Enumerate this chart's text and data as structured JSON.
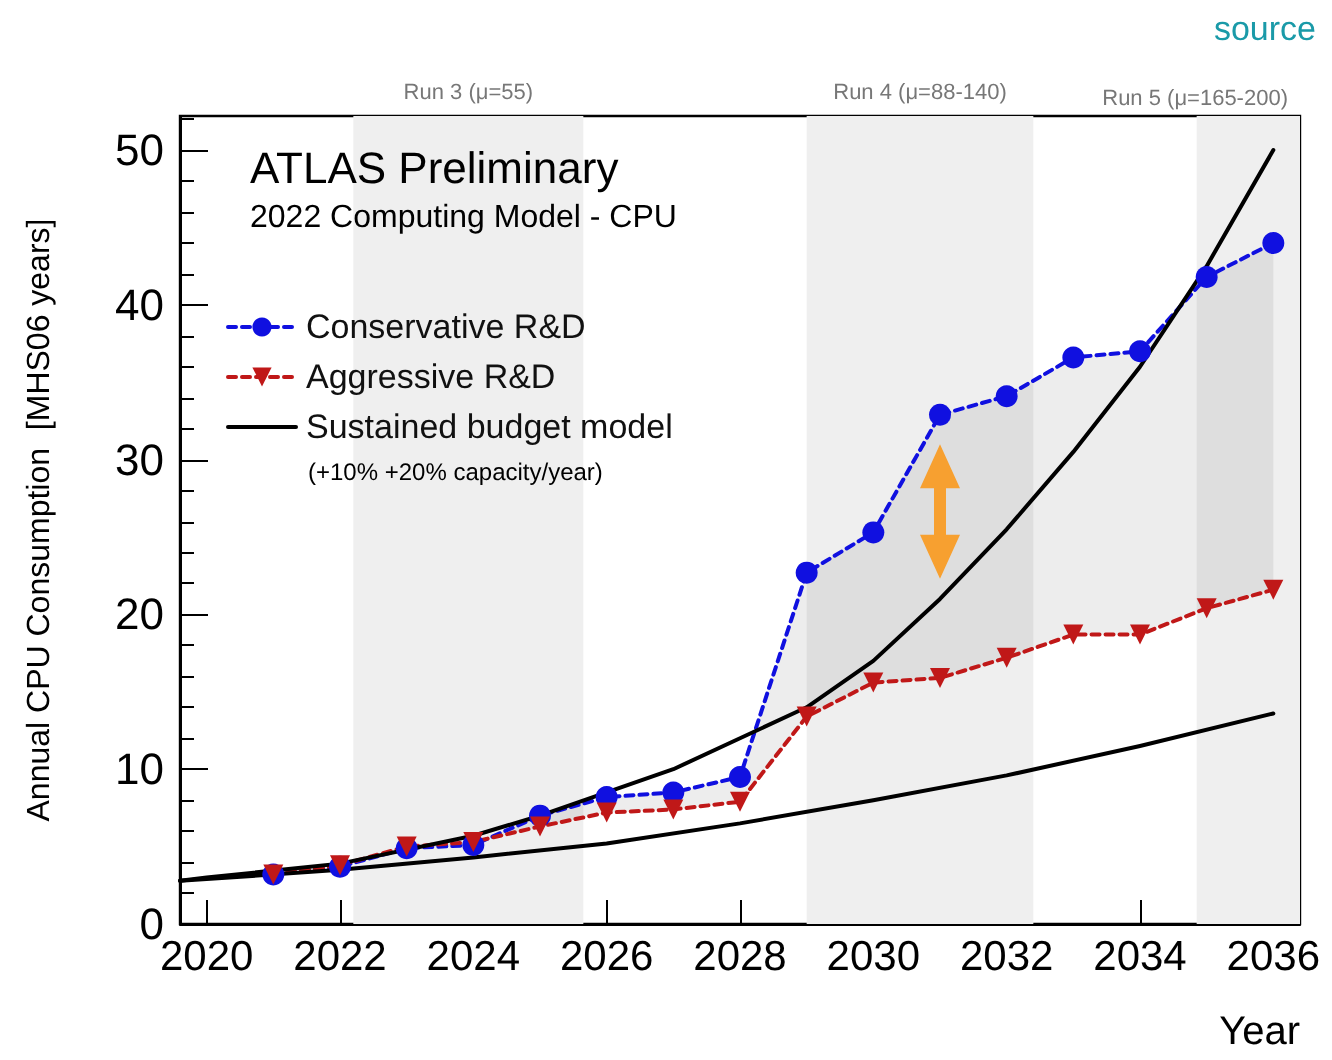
{
  "chart_data": {
    "type": "line",
    "title": "ATLAS Preliminary",
    "subtitle": "2022 Computing Model - CPU",
    "xlabel": "Year",
    "ylabel": "Annual CPU Consumption  [MHS06 years]",
    "x": [
      2021,
      2022,
      2023,
      2024,
      2025,
      2026,
      2027,
      2028,
      2029,
      2030,
      2031,
      2032,
      2033,
      2034,
      2035,
      2036
    ],
    "series": [
      {
        "name": "Conservative R&D",
        "color": "#1010e0",
        "marker": "circle",
        "line_style": "dashed",
        "values": [
          3.2,
          3.7,
          4.9,
          5.1,
          7.0,
          8.2,
          8.5,
          9.5,
          22.7,
          25.3,
          32.9,
          34.1,
          36.6,
          37.0,
          41.8,
          44.0
        ],
        "lower": [
          3.2,
          3.8,
          5.0,
          5.3,
          6.3,
          7.2,
          7.4,
          7.9,
          13.4,
          15.6,
          15.9,
          17.2,
          18.7,
          18.7,
          20.4,
          21.6
        ],
        "upper": [
          3.2,
          3.7,
          4.9,
          5.1,
          7.0,
          8.2,
          8.5,
          9.5,
          22.7,
          25.3,
          32.9,
          34.1,
          36.6,
          37.0,
          41.8,
          44.0
        ]
      },
      {
        "name": "Aggressive R&D",
        "color": "#c01818",
        "marker": "triangle",
        "line_style": "dashed",
        "values": [
          3.2,
          3.8,
          5.0,
          5.3,
          6.3,
          7.2,
          7.4,
          7.9,
          13.4,
          15.6,
          15.9,
          17.2,
          18.7,
          18.7,
          20.4,
          21.6
        ]
      },
      {
        "name": "Sustained budget model",
        "color": "#000000",
        "marker": "none",
        "line_style": "solid",
        "x": [
          2019.6,
          2020,
          2022,
          2024,
          2025,
          2026,
          2027,
          2028,
          2029,
          2030,
          2031,
          2032,
          2033,
          2034,
          2035,
          2036
        ],
        "values": [
          2.8,
          3.0,
          3.9,
          5.7,
          7.0,
          8.5,
          10.0,
          12.0,
          14.0,
          17.0,
          21.0,
          25.5,
          30.5,
          36.0,
          42.5,
          50.0
        ]
      },
      {
        "color": "#000000",
        "marker": "none",
        "line_style": "solid",
        "x": [
          2019.6,
          2020,
          2022,
          2024,
          2026,
          2028,
          2030,
          2032,
          2034,
          2036
        ],
        "values": [
          2.8,
          2.9,
          3.5,
          4.3,
          5.2,
          6.5,
          8.0,
          9.6,
          11.5,
          13.6
        ]
      }
    ],
    "bands": [
      {
        "axis": "x",
        "from": 2022.2,
        "to": 2025.65,
        "label": "Run 3 (μ=55)",
        "color": "#efefef"
      },
      {
        "axis": "x",
        "from": 2029.0,
        "to": 2032.4,
        "label": "Run 4 (μ=88-140)",
        "color": "#efefef"
      },
      {
        "axis": "x",
        "from": 2034.85,
        "to": 2036.4,
        "label": "Run 5 (μ=165-200)",
        "color": "#efefef"
      }
    ],
    "annotations": [
      "(+10% +20% capacity/year)",
      "source"
    ],
    "xlim": [
      2019.6,
      2036.4
    ],
    "xticks": [
      2020,
      2022,
      2024,
      2026,
      2028,
      2030,
      2032,
      2034,
      2036
    ],
    "ylim": [
      0,
      52.2
    ],
    "yticks": [
      0,
      10,
      20,
      30,
      40,
      50
    ],
    "grid": false,
    "legend": "top left"
  }
}
